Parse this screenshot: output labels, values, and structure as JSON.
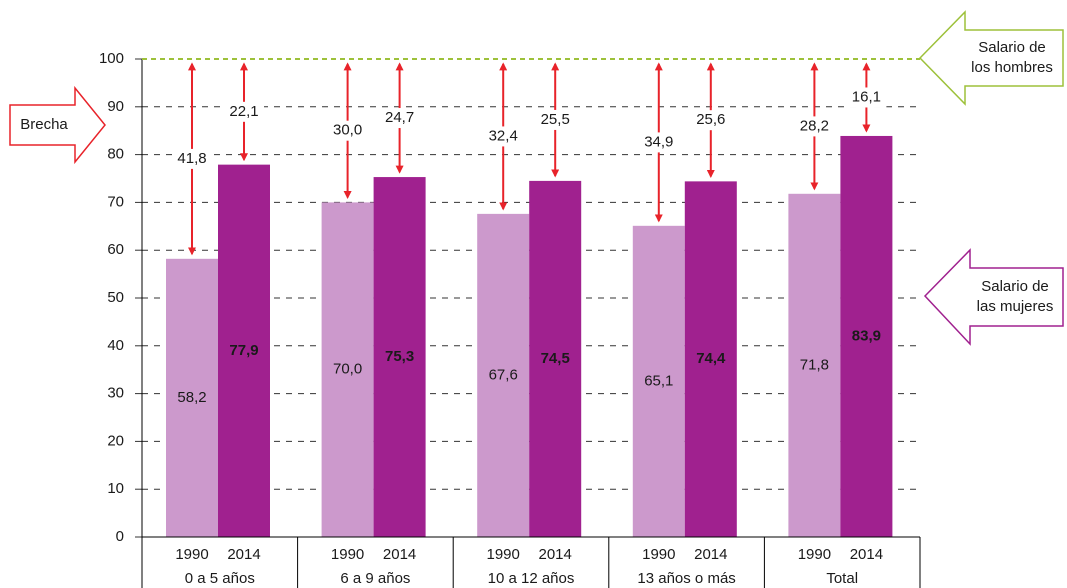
{
  "chart_data": {
    "type": "bar",
    "categories": [
      "0 a 5 años",
      "6 a 9 años",
      "10 a 12 años",
      "13 años o más",
      "Total"
    ],
    "series": [
      {
        "name": "1990",
        "color": "#cc99cc",
        "values": [
          58.2,
          70.0,
          67.6,
          65.1,
          71.8
        ],
        "value_labels": [
          "58,2",
          "70,0",
          "67,6",
          "65,1",
          "71,8"
        ],
        "label_color": "#1a1a1a",
        "gap_values": [
          41.8,
          30.0,
          32.4,
          34.9,
          28.2
        ],
        "gap_labels": [
          "41,8",
          "30,0",
          "32,4",
          "34,9",
          "28,2"
        ]
      },
      {
        "name": "2014",
        "color": "#a0218f",
        "values": [
          77.9,
          75.3,
          74.5,
          74.4,
          83.9
        ],
        "value_labels": [
          "77,9",
          "75,3",
          "74,5",
          "74,4",
          "83,9"
        ],
        "label_color": "#ffffff",
        "gap_values": [
          22.1,
          24.7,
          25.5,
          25.6,
          16.1
        ],
        "gap_labels": [
          "22,1",
          "24,7",
          "25,5",
          "25,6",
          "16,1"
        ]
      }
    ],
    "ylim": [
      0,
      100
    ],
    "yticks": [
      0,
      10,
      20,
      30,
      40,
      50,
      60,
      70,
      80,
      90,
      100
    ],
    "grid": true,
    "annotations": {
      "gap": "Brecha",
      "men": [
        "Salario de",
        "los hombres"
      ],
      "women": [
        "Salario de",
        "las mujeres"
      ]
    }
  }
}
